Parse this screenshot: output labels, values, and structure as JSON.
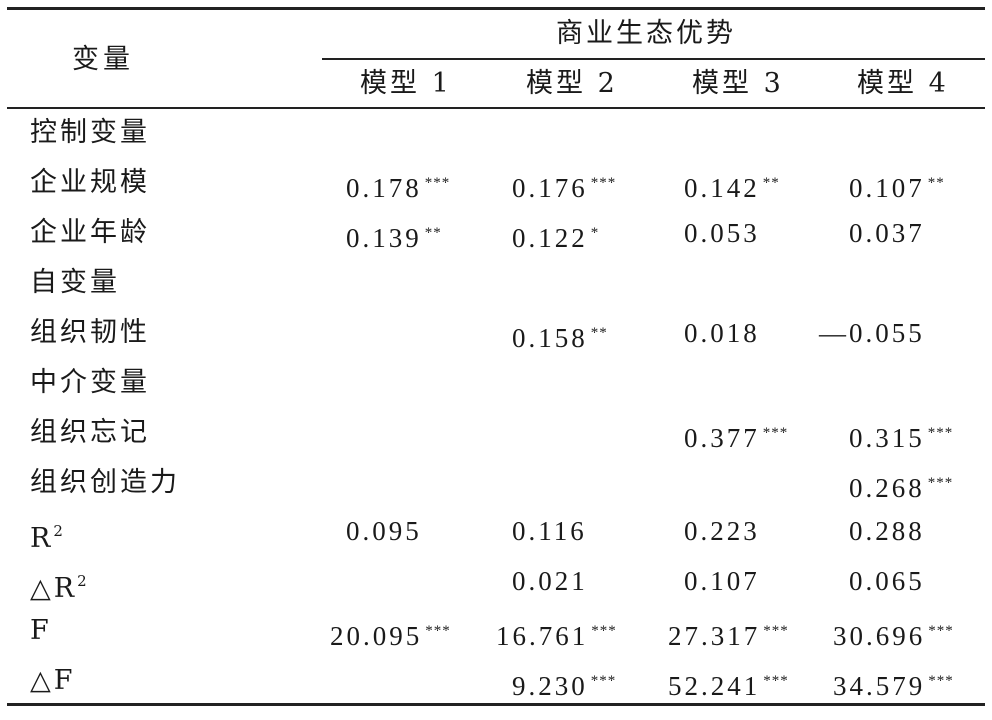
{
  "table": {
    "header": {
      "variable_label": "变量",
      "group_label": "商业生态优势",
      "models": [
        "模型 1",
        "模型 2",
        "模型 3",
        "模型 4"
      ]
    },
    "rows": [
      {
        "label": "控制变量",
        "section": true,
        "cells": [
          {
            "v": "",
            "s": ""
          },
          {
            "v": "",
            "s": ""
          },
          {
            "v": "",
            "s": ""
          },
          {
            "v": "",
            "s": ""
          }
        ]
      },
      {
        "label": "企业规模",
        "cells": [
          {
            "v": "0.178",
            "s": "***"
          },
          {
            "v": "0.176",
            "s": "***"
          },
          {
            "v": "0.142",
            "s": "**"
          },
          {
            "v": "0.107",
            "s": "**"
          }
        ]
      },
      {
        "label": "企业年龄",
        "cells": [
          {
            "v": "0.139",
            "s": "**"
          },
          {
            "v": "0.122",
            "s": "*"
          },
          {
            "v": "0.053",
            "s": ""
          },
          {
            "v": "0.037",
            "s": ""
          }
        ]
      },
      {
        "label": "自变量",
        "section": true,
        "cells": [
          {
            "v": "",
            "s": ""
          },
          {
            "v": "",
            "s": ""
          },
          {
            "v": "",
            "s": ""
          },
          {
            "v": "",
            "s": ""
          }
        ]
      },
      {
        "label": "组织韧性",
        "cells": [
          {
            "v": "",
            "s": ""
          },
          {
            "v": "0.158",
            "s": "**"
          },
          {
            "v": "0.018",
            "s": ""
          },
          {
            "v": "—0.055",
            "s": ""
          }
        ]
      },
      {
        "label": "中介变量",
        "section": true,
        "cells": [
          {
            "v": "",
            "s": ""
          },
          {
            "v": "",
            "s": ""
          },
          {
            "v": "",
            "s": ""
          },
          {
            "v": "",
            "s": ""
          }
        ]
      },
      {
        "label": "组织忘记",
        "cells": [
          {
            "v": "",
            "s": ""
          },
          {
            "v": "",
            "s": ""
          },
          {
            "v": "0.377",
            "s": "***"
          },
          {
            "v": "0.315",
            "s": "***"
          }
        ]
      },
      {
        "label": "组织创造力",
        "cells": [
          {
            "v": "",
            "s": ""
          },
          {
            "v": "",
            "s": ""
          },
          {
            "v": "",
            "s": ""
          },
          {
            "v": "0.268",
            "s": "***"
          }
        ]
      },
      {
        "label": "R",
        "sup": "2",
        "cells": [
          {
            "v": "0.095",
            "s": ""
          },
          {
            "v": "0.116",
            "s": ""
          },
          {
            "v": "0.223",
            "s": ""
          },
          {
            "v": "0.288",
            "s": ""
          }
        ]
      },
      {
        "label": "△R",
        "sup": "2",
        "cells": [
          {
            "v": "",
            "s": ""
          },
          {
            "v": "0.021",
            "s": ""
          },
          {
            "v": "0.107",
            "s": ""
          },
          {
            "v": "0.065",
            "s": ""
          }
        ]
      },
      {
        "label": "F",
        "cells": [
          {
            "v": "20.095",
            "s": "***"
          },
          {
            "v": "16.761",
            "s": "***"
          },
          {
            "v": "27.317",
            "s": "***"
          },
          {
            "v": "30.696",
            "s": "***"
          }
        ]
      },
      {
        "label": "△F",
        "cells": [
          {
            "v": "",
            "s": ""
          },
          {
            "v": "9.230",
            "s": "***"
          },
          {
            "v": "52.241",
            "s": "***"
          },
          {
            "v": "34.579",
            "s": "***"
          }
        ]
      }
    ]
  }
}
